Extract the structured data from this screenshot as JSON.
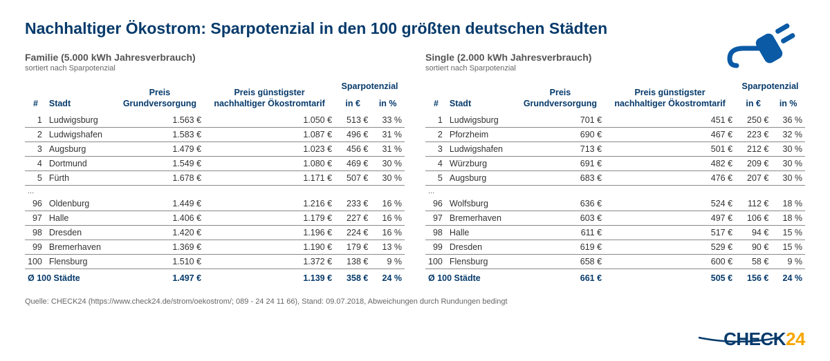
{
  "title": "Nachhaltiger Ökostrom: Sparpotenzial in den 100 größten deutschen Städten",
  "left": {
    "sub1": "Familie (5.000 kWh Jahresverbrauch)",
    "sub2": "sortiert nach Sparpotenzial",
    "headers": {
      "rank": "#",
      "city": "Stadt",
      "p1a": "Preis",
      "p1b": "Grundversorgung",
      "p2a": "Preis günstigster",
      "p2b": "nachhaltiger Ökostromtarif",
      "spa": "Sparpotenzial",
      "sp_eur": "in €",
      "sp_pct": "in %"
    },
    "rows": [
      {
        "r": "1",
        "c": "Ludwigsburg",
        "p1": "1.563 €",
        "p2": "1.050 €",
        "e": "513 €",
        "pc": "33 %"
      },
      {
        "r": "2",
        "c": "Ludwigshafen",
        "p1": "1.583 €",
        "p2": "1.087 €",
        "e": "496 €",
        "pc": "31 %"
      },
      {
        "r": "3",
        "c": "Augsburg",
        "p1": "1.479 €",
        "p2": "1.023 €",
        "e": "456 €",
        "pc": "31 %"
      },
      {
        "r": "4",
        "c": "Dortmund",
        "p1": "1.549 €",
        "p2": "1.080 €",
        "e": "469 €",
        "pc": "30 %"
      },
      {
        "r": "5",
        "c": "Fürth",
        "p1": "1.678 €",
        "p2": "1.171 €",
        "e": "507 €",
        "pc": "30 %"
      }
    ],
    "ellipsis": "...",
    "rows2": [
      {
        "r": "96",
        "c": "Oldenburg",
        "p1": "1.449 €",
        "p2": "1.216 €",
        "e": "233 €",
        "pc": "16 %"
      },
      {
        "r": "97",
        "c": "Halle",
        "p1": "1.406 €",
        "p2": "1.179 €",
        "e": "227 €",
        "pc": "16 %"
      },
      {
        "r": "98",
        "c": "Dresden",
        "p1": "1.420 €",
        "p2": "1.196 €",
        "e": "224 €",
        "pc": "16 %"
      },
      {
        "r": "99",
        "c": "Bremerhaven",
        "p1": "1.369 €",
        "p2": "1.190 €",
        "e": "179 €",
        "pc": "13 %"
      },
      {
        "r": "100",
        "c": "Flensburg",
        "p1": "1.510 €",
        "p2": "1.372 €",
        "e": "138 €",
        "pc": "9 %"
      }
    ],
    "avg": {
      "label": "Ø 100 Städte",
      "p1": "1.497 €",
      "p2": "1.139 €",
      "e": "358 €",
      "pc": "24 %"
    }
  },
  "right": {
    "sub1": "Single (2.000 kWh Jahresverbrauch)",
    "sub2": "sortiert nach Sparpotenzial",
    "headers": {
      "rank": "#",
      "city": "Stadt",
      "p1a": "Preis",
      "p1b": "Grundversorgung",
      "p2a": "Preis günstigster",
      "p2b": "nachhaltiger Ökostromtarif",
      "spa": "Sparpotenzial",
      "sp_eur": "in €",
      "sp_pct": "in %"
    },
    "rows": [
      {
        "r": "1",
        "c": "Ludwigsburg",
        "p1": "701 €",
        "p2": "451 €",
        "e": "250 €",
        "pc": "36 %"
      },
      {
        "r": "2",
        "c": "Pforzheim",
        "p1": "690 €",
        "p2": "467 €",
        "e": "223 €",
        "pc": "32 %"
      },
      {
        "r": "3",
        "c": "Ludwigshafen",
        "p1": "713 €",
        "p2": "501 €",
        "e": "212 €",
        "pc": "30 %"
      },
      {
        "r": "4",
        "c": "Würzburg",
        "p1": "691 €",
        "p2": "482 €",
        "e": "209 €",
        "pc": "30 %"
      },
      {
        "r": "5",
        "c": "Augsburg",
        "p1": "683 €",
        "p2": "476 €",
        "e": "207 €",
        "pc": "30 %"
      }
    ],
    "ellipsis": "...",
    "rows2": [
      {
        "r": "96",
        "c": "Wolfsburg",
        "p1": "636 €",
        "p2": "524 €",
        "e": "112 €",
        "pc": "18 %"
      },
      {
        "r": "97",
        "c": "Bremerhaven",
        "p1": "603 €",
        "p2": "497 €",
        "e": "106 €",
        "pc": "18 %"
      },
      {
        "r": "98",
        "c": "Halle",
        "p1": "611 €",
        "p2": "517 €",
        "e": "94 €",
        "pc": "15 %"
      },
      {
        "r": "99",
        "c": "Dresden",
        "p1": "619 €",
        "p2": "529 €",
        "e": "90 €",
        "pc": "15 %"
      },
      {
        "r": "100",
        "c": "Flensburg",
        "p1": "658 €",
        "p2": "600 €",
        "e": "58 €",
        "pc": "9 %"
      }
    ],
    "avg": {
      "label": "Ø 100 Städte",
      "p1": "661 €",
      "p2": "505 €",
      "e": "156 €",
      "pc": "24 %"
    }
  },
  "footnote": "Quelle: CHECK24 (https://www.check24.de/strom/oekostrom/; 089 - 24 24 11 66), Stand: 09.07.2018, Abweichungen durch Rundungen bedingt",
  "brand": {
    "a": "CHECK",
    "b": "24"
  },
  "colors": {
    "primary": "#063a6b",
    "accent": "#f7a600",
    "icon": "#0a5aa6"
  }
}
